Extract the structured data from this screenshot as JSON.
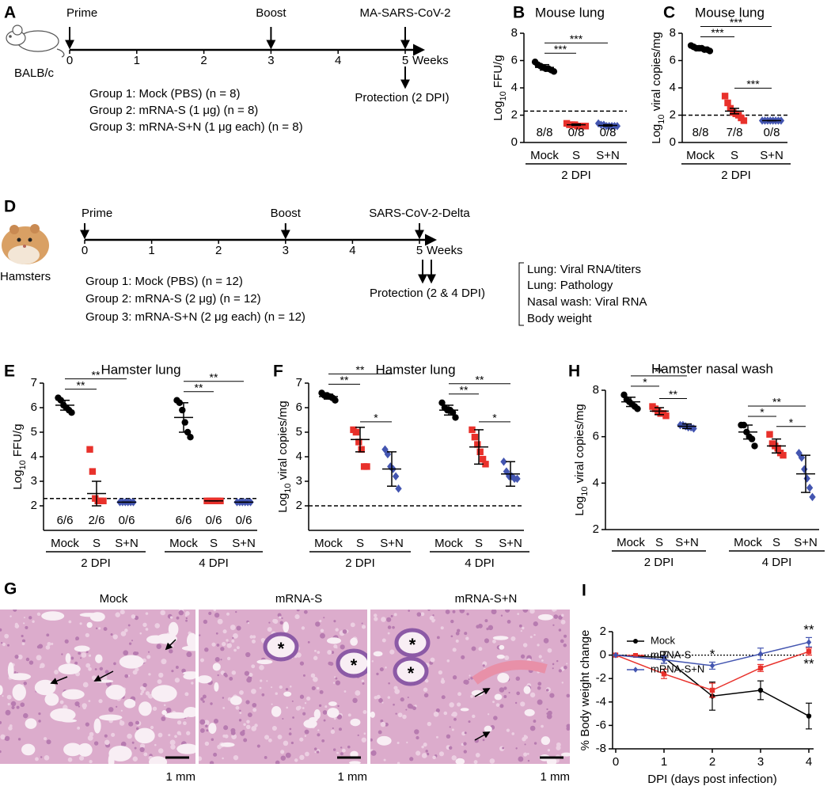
{
  "timelines": [
    {
      "label": "A",
      "animal": "BALB/c",
      "events": [
        {
          "label": "Prime",
          "week": 0
        },
        {
          "label": "Boost",
          "week": 3
        },
        {
          "label": "MA-SARS-CoV-2",
          "week": 5
        }
      ],
      "weeks": [
        0,
        1,
        2,
        3,
        4,
        5
      ],
      "unit": "Weeks",
      "protection": "Protection (2 DPI)",
      "groups": [
        {
          "text": "Group 1: Mock (PBS) (n = 8)",
          "color": "#000000"
        },
        {
          "text": "Group 2: mRNA-S (1 μg) (n = 8)",
          "color": "#e8312b"
        },
        {
          "text": "Group 3: mRNA-S+N (1 μg each) (n = 8)",
          "color": "#4355b0"
        }
      ]
    },
    {
      "label": "D",
      "animal": "Hamsters",
      "events": [
        {
          "label": "Prime",
          "week": 0
        },
        {
          "label": "Boost",
          "week": 3
        },
        {
          "label": "SARS-CoV-2-Delta",
          "week": 5
        }
      ],
      "weeks": [
        0,
        1,
        2,
        3,
        4,
        5
      ],
      "unit": "Weeks",
      "protection": "Protection (2 & 4 DPI)",
      "groups": [
        {
          "text": "Group 1: Mock (PBS) (n = 12)",
          "color": "#000000"
        },
        {
          "text": "Group 2: mRNA-S (2 μg) (n = 12)",
          "color": "#e8312b"
        },
        {
          "text": "Group 3: mRNA-S+N (2 μg each) (n = 12)",
          "color": "#4355b0"
        }
      ],
      "readouts": [
        "Lung: Viral RNA/titers",
        "Lung: Pathology",
        "Nasal wash: Viral RNA",
        "Body weight"
      ]
    }
  ],
  "histology": {
    "label": "G",
    "panels": [
      {
        "title": "Mock",
        "color": "#000000",
        "scale": "1 mm",
        "marks": []
      },
      {
        "title": "mRNA-S",
        "color": "#e8312b",
        "scale": "1 mm",
        "marks": [
          "*",
          "*"
        ]
      },
      {
        "title": "mRNA-S+N",
        "color": "#4355b0",
        "scale": "1 mm",
        "marks": [
          "*",
          "*"
        ]
      }
    ]
  },
  "chart_data": [
    {
      "type": "dot",
      "label": "B",
      "title": "Mouse lung",
      "ylabel": {
        "base": "Log",
        "sub": "10",
        "rest": " FFU/g"
      },
      "ylim": [
        0,
        8
      ],
      "yticks": [
        0,
        2,
        4,
        6,
        8
      ],
      "lod": 2.3,
      "groups": [
        {
          "name": "2 DPI",
          "series": [
            {
              "name": "Mock",
              "color": "#000000",
              "marker": "circle",
              "values": [
                5.9,
                5.7,
                5.6,
                5.5,
                5.4,
                5.4,
                5.3,
                5.2
              ],
              "mean": 5.5,
              "error": 0.2,
              "count": "8/8"
            },
            {
              "name": "S",
              "color": "#e8312b",
              "marker": "square",
              "values": [
                1.4,
                1.3,
                1.3,
                1.3,
                1.2,
                1.2,
                1.2,
                1.2
              ],
              "mean": 1.3,
              "error": 0.05,
              "count": "0/8"
            },
            {
              "name": "S+N",
              "color": "#4355b0",
              "marker": "diamond",
              "values": [
                1.4,
                1.3,
                1.3,
                1.2,
                1.2,
                1.2,
                1.2,
                1.2
              ],
              "mean": 1.25,
              "error": 0.05,
              "count": "0/8"
            }
          ]
        }
      ],
      "significance": [
        {
          "group": 0,
          "from": 0,
          "to": 1,
          "label": "***"
        },
        {
          "group": 0,
          "from": 0,
          "to": 2,
          "label": "***"
        }
      ]
    },
    {
      "type": "dot",
      "label": "C",
      "title": "Mouse lung",
      "ylabel": {
        "base": "Log",
        "sub": "10",
        "rest": " viral copies/mg"
      },
      "ylim": [
        0,
        8
      ],
      "yticks": [
        0,
        2,
        4,
        6,
        8
      ],
      "lod": 2.0,
      "groups": [
        {
          "name": "2 DPI",
          "series": [
            {
              "name": "Mock",
              "color": "#000000",
              "marker": "circle",
              "values": [
                7.1,
                7.0,
                6.9,
                6.9,
                6.9,
                6.8,
                6.8,
                6.7
              ],
              "mean": 6.9,
              "error": 0.05,
              "count": "8/8"
            },
            {
              "name": "S",
              "color": "#e8312b",
              "marker": "square",
              "values": [
                3.4,
                2.9,
                2.5,
                2.2,
                2.1,
                2.0,
                1.8,
                1.6
              ],
              "mean": 2.3,
              "error": 0.2,
              "count": "7/8"
            },
            {
              "name": "S+N",
              "color": "#4355b0",
              "marker": "diamond",
              "values": [
                1.6,
                1.6,
                1.6,
                1.6,
                1.6,
                1.6,
                1.6,
                1.6
              ],
              "mean": 1.6,
              "error": 0,
              "count": "0/8"
            }
          ]
        }
      ],
      "significance": [
        {
          "group": 0,
          "from": 0,
          "to": 1,
          "label": "***"
        },
        {
          "group": 0,
          "from": 0,
          "to": 2,
          "label": "***"
        },
        {
          "group": 0,
          "from": 1,
          "to": 2,
          "label": "***"
        }
      ]
    },
    {
      "type": "dot",
      "label": "E",
      "title": "Hamster lung",
      "ylabel": {
        "base": "Log",
        "sub": "10",
        "rest": " FFU/g"
      },
      "ylim": [
        1,
        7
      ],
      "yticks": [
        2,
        3,
        4,
        5,
        6,
        7
      ],
      "lod": 2.3,
      "groups": [
        {
          "name": "2 DPI",
          "series": [
            {
              "name": "Mock",
              "color": "#000000",
              "marker": "circle",
              "values": [
                6.4,
                6.3,
                6.1,
                6.0,
                5.9,
                5.8
              ],
              "mean": 6.1,
              "error": 0.2,
              "count": "6/6"
            },
            {
              "name": "S",
              "color": "#e8312b",
              "marker": "square",
              "values": [
                4.3,
                3.4,
                2.3,
                2.2,
                2.2,
                2.2
              ],
              "mean": 2.5,
              "error": 0.5,
              "count": "2/6"
            },
            {
              "name": "S+N",
              "color": "#4355b0",
              "marker": "diamond",
              "values": [
                2.15,
                2.15,
                2.15,
                2.15,
                2.15,
                2.15
              ],
              "mean": 2.15,
              "error": 0,
              "count": "0/6"
            }
          ]
        },
        {
          "name": "4 DPI",
          "series": [
            {
              "name": "Mock",
              "color": "#000000",
              "marker": "circle",
              "values": [
                6.3,
                6.2,
                5.9,
                5.4,
                5.0,
                4.8
              ],
              "mean": 5.6,
              "error": 0.6,
              "count": "6/6"
            },
            {
              "name": "S",
              "color": "#e8312b",
              "marker": "square",
              "values": [
                2.2,
                2.2,
                2.2,
                2.2,
                2.2,
                2.2
              ],
              "mean": 2.2,
              "error": 0,
              "count": "0/6"
            },
            {
              "name": "S+N",
              "color": "#4355b0",
              "marker": "diamond",
              "values": [
                2.15,
                2.15,
                2.15,
                2.15,
                2.15,
                2.15
              ],
              "mean": 2.15,
              "error": 0,
              "count": "0/6"
            }
          ]
        }
      ],
      "significance": [
        {
          "group": 0,
          "from": 0,
          "to": 1,
          "label": "**"
        },
        {
          "group": 0,
          "from": 0,
          "to": 2,
          "label": "**"
        },
        {
          "group": 1,
          "from": 0,
          "to": 1,
          "label": "**"
        },
        {
          "group": 1,
          "from": 0,
          "to": 2,
          "label": "**"
        }
      ]
    },
    {
      "type": "dot",
      "label": "F",
      "title": "Hamster lung",
      "ylabel": {
        "base": "Log",
        "sub": "10",
        "rest": " viral copies/mg"
      },
      "ylim": [
        1,
        7
      ],
      "yticks": [
        2,
        3,
        4,
        5,
        6,
        7
      ],
      "lod": 2.0,
      "groups": [
        {
          "name": "2 DPI",
          "series": [
            {
              "name": "Mock",
              "color": "#000000",
              "marker": "circle",
              "values": [
                6.6,
                6.5,
                6.5,
                6.45,
                6.4,
                6.3
              ],
              "mean": 6.45,
              "error": 0.1
            },
            {
              "name": "S",
              "color": "#e8312b",
              "marker": "square",
              "values": [
                5.1,
                5.0,
                4.6,
                4.3,
                3.6,
                3.6
              ],
              "mean": 4.7,
              "error": 0.5
            },
            {
              "name": "S+N",
              "color": "#4355b0",
              "marker": "diamond",
              "values": [
                4.3,
                4.1,
                3.6,
                3.5,
                3.2,
                2.7
              ],
              "mean": 3.5,
              "error": 0.7
            }
          ]
        },
        {
          "name": "4 DPI",
          "series": [
            {
              "name": "Mock",
              "color": "#000000",
              "marker": "circle",
              "values": [
                6.2,
                6.0,
                5.9,
                5.9,
                5.8,
                5.6
              ],
              "mean": 5.9,
              "error": 0.2
            },
            {
              "name": "S",
              "color": "#e8312b",
              "marker": "square",
              "values": [
                5.1,
                4.8,
                4.5,
                4.2,
                3.9,
                3.7
              ],
              "mean": 4.4,
              "error": 0.7
            },
            {
              "name": "S+N",
              "color": "#4355b0",
              "marker": "diamond",
              "values": [
                3.8,
                3.4,
                3.2,
                3.2,
                3.1,
                3.1
              ],
              "mean": 3.3,
              "error": 0.5
            }
          ]
        }
      ],
      "significance": [
        {
          "group": 0,
          "from": 0,
          "to": 1,
          "label": "**"
        },
        {
          "group": 0,
          "from": 0,
          "to": 2,
          "label": "**"
        },
        {
          "group": 0,
          "from": 1,
          "to": 2,
          "label": "*"
        },
        {
          "group": 1,
          "from": 0,
          "to": 1,
          "label": "**"
        },
        {
          "group": 1,
          "from": 0,
          "to": 2,
          "label": "**"
        },
        {
          "group": 1,
          "from": 1,
          "to": 2,
          "label": "*"
        }
      ]
    },
    {
      "type": "dot",
      "label": "H",
      "title": "Hamster nasal wash",
      "ylabel": {
        "base": "Log",
        "sub": "10",
        "rest": " viral copies/mg"
      },
      "ylim": [
        2,
        8
      ],
      "yticks": [
        2,
        4,
        6,
        8
      ],
      "groups": [
        {
          "name": "2 DPI",
          "series": [
            {
              "name": "Mock",
              "color": "#000000",
              "marker": "circle",
              "values": [
                7.8,
                7.6,
                7.5,
                7.4,
                7.3,
                7.2
              ],
              "mean": 7.5,
              "error": 0.2
            },
            {
              "name": "S",
              "color": "#e8312b",
              "marker": "square",
              "values": [
                7.3,
                7.2,
                7.1,
                7.0,
                7.0,
                6.9
              ],
              "mean": 7.1,
              "error": 0.15
            },
            {
              "name": "S+N",
              "color": "#4355b0",
              "marker": "diamond",
              "values": [
                6.5,
                6.5,
                6.45,
                6.4,
                6.4,
                6.35
              ],
              "mean": 6.45,
              "error": 0.1
            }
          ]
        },
        {
          "name": "4 DPI",
          "series": [
            {
              "name": "Mock",
              "color": "#000000",
              "marker": "circle",
              "values": [
                6.5,
                6.5,
                6.2,
                6.0,
                5.9,
                5.6
              ],
              "mean": 6.2,
              "error": 0.3
            },
            {
              "name": "S",
              "color": "#e8312b",
              "marker": "square",
              "values": [
                6.1,
                5.7,
                5.6,
                5.5,
                5.3,
                5.2
              ],
              "mean": 5.6,
              "error": 0.3
            },
            {
              "name": "S+N",
              "color": "#4355b0",
              "marker": "diamond",
              "values": [
                5.3,
                5.1,
                4.6,
                4.2,
                3.8,
                3.4
              ],
              "mean": 4.4,
              "error": 0.8
            }
          ]
        }
      ],
      "significance": [
        {
          "group": 0,
          "from": 0,
          "to": 1,
          "label": "*"
        },
        {
          "group": 0,
          "from": 0,
          "to": 2,
          "label": "**"
        },
        {
          "group": 0,
          "from": 1,
          "to": 2,
          "label": "**"
        },
        {
          "group": 1,
          "from": 0,
          "to": 1,
          "label": "*"
        },
        {
          "group": 1,
          "from": 0,
          "to": 2,
          "label": "**"
        },
        {
          "group": 1,
          "from": 1,
          "to": 2,
          "label": "*"
        }
      ]
    },
    {
      "type": "line",
      "label": "I",
      "xlabel": "DPI (days post infection)",
      "ylabel": "% Body weight change",
      "x": [
        0,
        1,
        2,
        3,
        4
      ],
      "xlim": [
        0,
        4
      ],
      "xticks": [
        0,
        1,
        2,
        3,
        4
      ],
      "ylim": [
        -8,
        2
      ],
      "yticks": [
        -8,
        -6,
        -4,
        -2,
        0,
        2
      ],
      "refline": 0,
      "legend": "upper left",
      "series": [
        {
          "name": "Mock",
          "color": "#000000",
          "marker": "circle",
          "values": [
            0,
            -0.2,
            -3.5,
            -3.0,
            -5.2
          ],
          "errors": [
            0,
            0.5,
            1.2,
            0.8,
            1.1
          ]
        },
        {
          "name": "mRNA-S",
          "color": "#e8312b",
          "marker": "square",
          "values": [
            0,
            -1.6,
            -3.0,
            -1.1,
            0.3
          ],
          "errors": [
            0,
            0.4,
            0.6,
            0.3,
            0.3
          ]
        },
        {
          "name": "mRNA-S+N",
          "color": "#4355b0",
          "marker": "diamond",
          "values": [
            0,
            -0.4,
            -0.9,
            0.1,
            1.1
          ],
          "errors": [
            0,
            0.3,
            0.3,
            0.5,
            0.4
          ]
        }
      ],
      "annotations": [
        {
          "x": 4,
          "series": 2,
          "label": "**",
          "position": "above"
        },
        {
          "x": 4,
          "series": 1,
          "label": "**",
          "position": "below"
        },
        {
          "x": 2,
          "series": 2,
          "label": "*",
          "position": "above"
        }
      ]
    }
  ]
}
